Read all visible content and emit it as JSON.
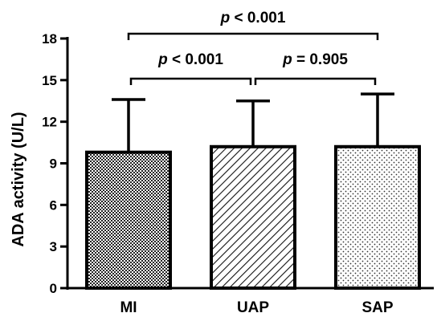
{
  "chart_data": {
    "type": "bar",
    "categories": [
      "MI",
      "UAP",
      "SAP"
    ],
    "values": [
      9.8,
      10.2,
      10.2
    ],
    "error_upper": [
      13.6,
      13.5,
      14.0
    ],
    "ylabel": "ADA activity (U/L)",
    "ylim": [
      0,
      18
    ],
    "yticks": [
      "0",
      "3",
      "6",
      "9",
      "12",
      "15",
      "18"
    ],
    "patterns": [
      "checker",
      "diagonal-hatch",
      "dots"
    ],
    "comparisons": [
      {
        "from": "MI",
        "to": "UAP",
        "p_symbol": "p",
        "text": " < 0.001"
      },
      {
        "from": "UAP",
        "to": "SAP",
        "p_symbol": "p",
        "text": " = 0.905"
      },
      {
        "from": "MI",
        "to": "SAP",
        "p_symbol": "p",
        "text": " < 0.001"
      }
    ],
    "grid": false,
    "legend": "none"
  }
}
